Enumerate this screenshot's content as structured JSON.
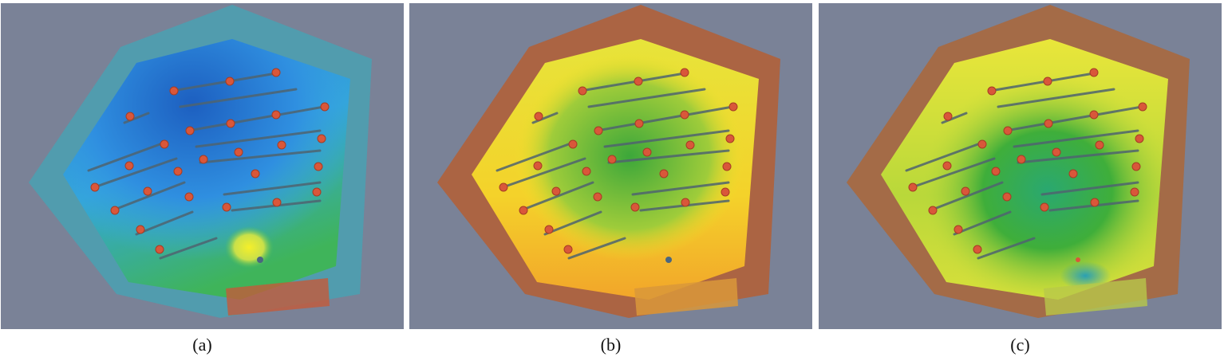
{
  "figure": {
    "panels": [
      {
        "id": "a",
        "caption": "(a)",
        "palette": "cool"
      },
      {
        "id": "b",
        "caption": "(b)",
        "palette": "warm"
      },
      {
        "id": "c",
        "caption": "(c)",
        "palette": "mixed"
      }
    ]
  },
  "colors": {
    "background": "#7a8297",
    "speaker_dot": "#d9573a",
    "seat_row": "#4f6470"
  }
}
